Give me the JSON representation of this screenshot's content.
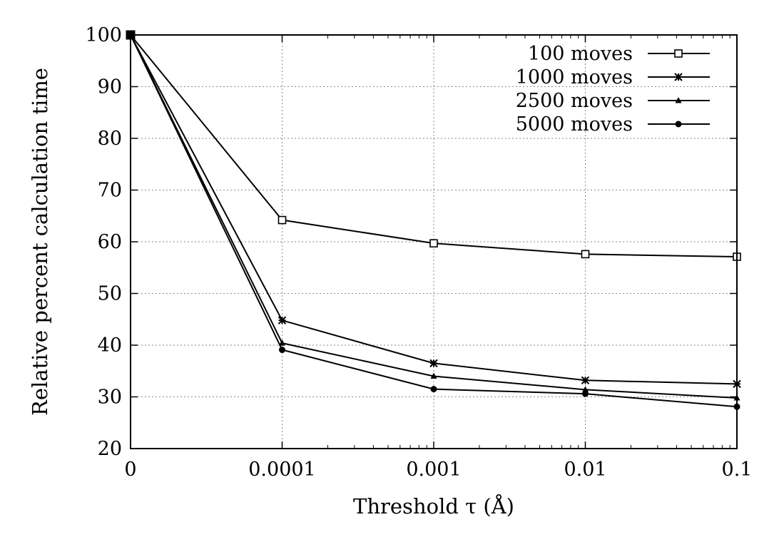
{
  "chart_data": {
    "type": "line",
    "title": "",
    "xlabel": "Threshold τ (Å)",
    "ylabel": "Relative percent calculation time",
    "categories": [
      "0",
      "0.0001",
      "0.001",
      "0.01",
      "0.1"
    ],
    "ylim": [
      20,
      100
    ],
    "yticks": [
      "20",
      "30",
      "40",
      "50",
      "60",
      "70",
      "80",
      "90",
      "100"
    ],
    "grid": true,
    "legend_position": "top-right",
    "series": [
      {
        "name": "100 moves",
        "marker": "open-square",
        "values": [
          100,
          64.2,
          59.7,
          57.6,
          57.1
        ]
      },
      {
        "name": "1000 moves",
        "marker": "asterisk",
        "values": [
          100,
          44.8,
          36.5,
          33.2,
          32.5
        ]
      },
      {
        "name": "2500 moves",
        "marker": "triangle",
        "values": [
          100,
          40.4,
          34.0,
          31.4,
          29.8
        ]
      },
      {
        "name": "5000 moves",
        "marker": "filled-circle",
        "values": [
          100,
          39.1,
          31.5,
          30.6,
          28.1
        ]
      }
    ]
  }
}
